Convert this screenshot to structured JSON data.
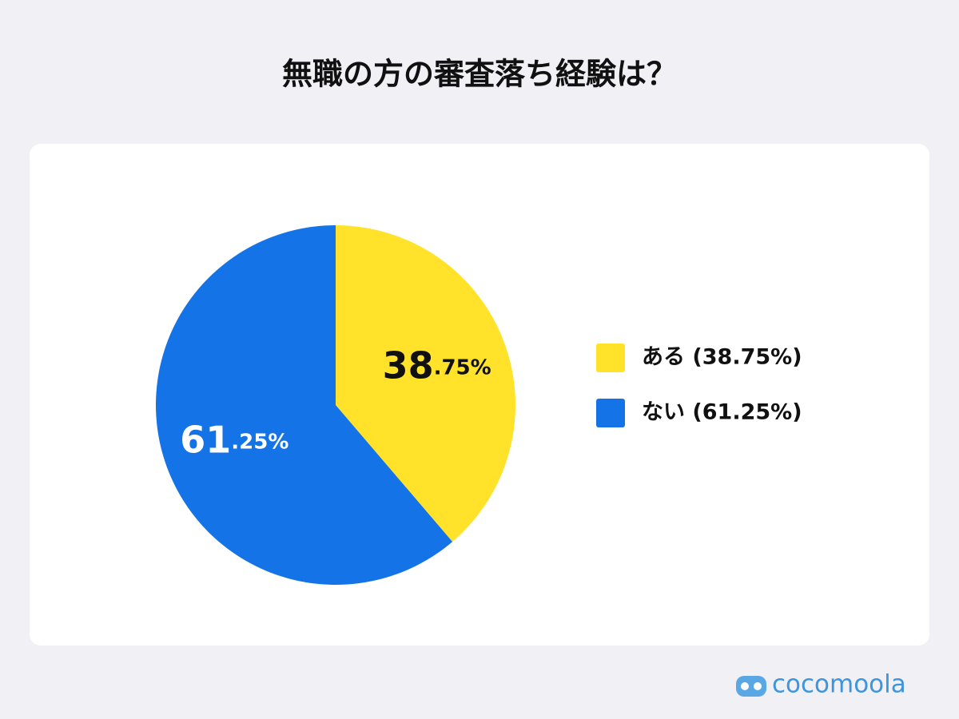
{
  "chart_data": {
    "type": "pie",
    "title": "無職の方の審査落ち経験は？",
    "categories": [
      "ある (38.75%)",
      "ない (61.25%)"
    ],
    "values": [
      38.75,
      61.25
    ],
    "value_labels": [
      "38.75%",
      "61.25%"
    ],
    "colors": [
      "#ffe229",
      "#1473e6"
    ],
    "legend": "right"
  },
  "brand": "cocomoola"
}
